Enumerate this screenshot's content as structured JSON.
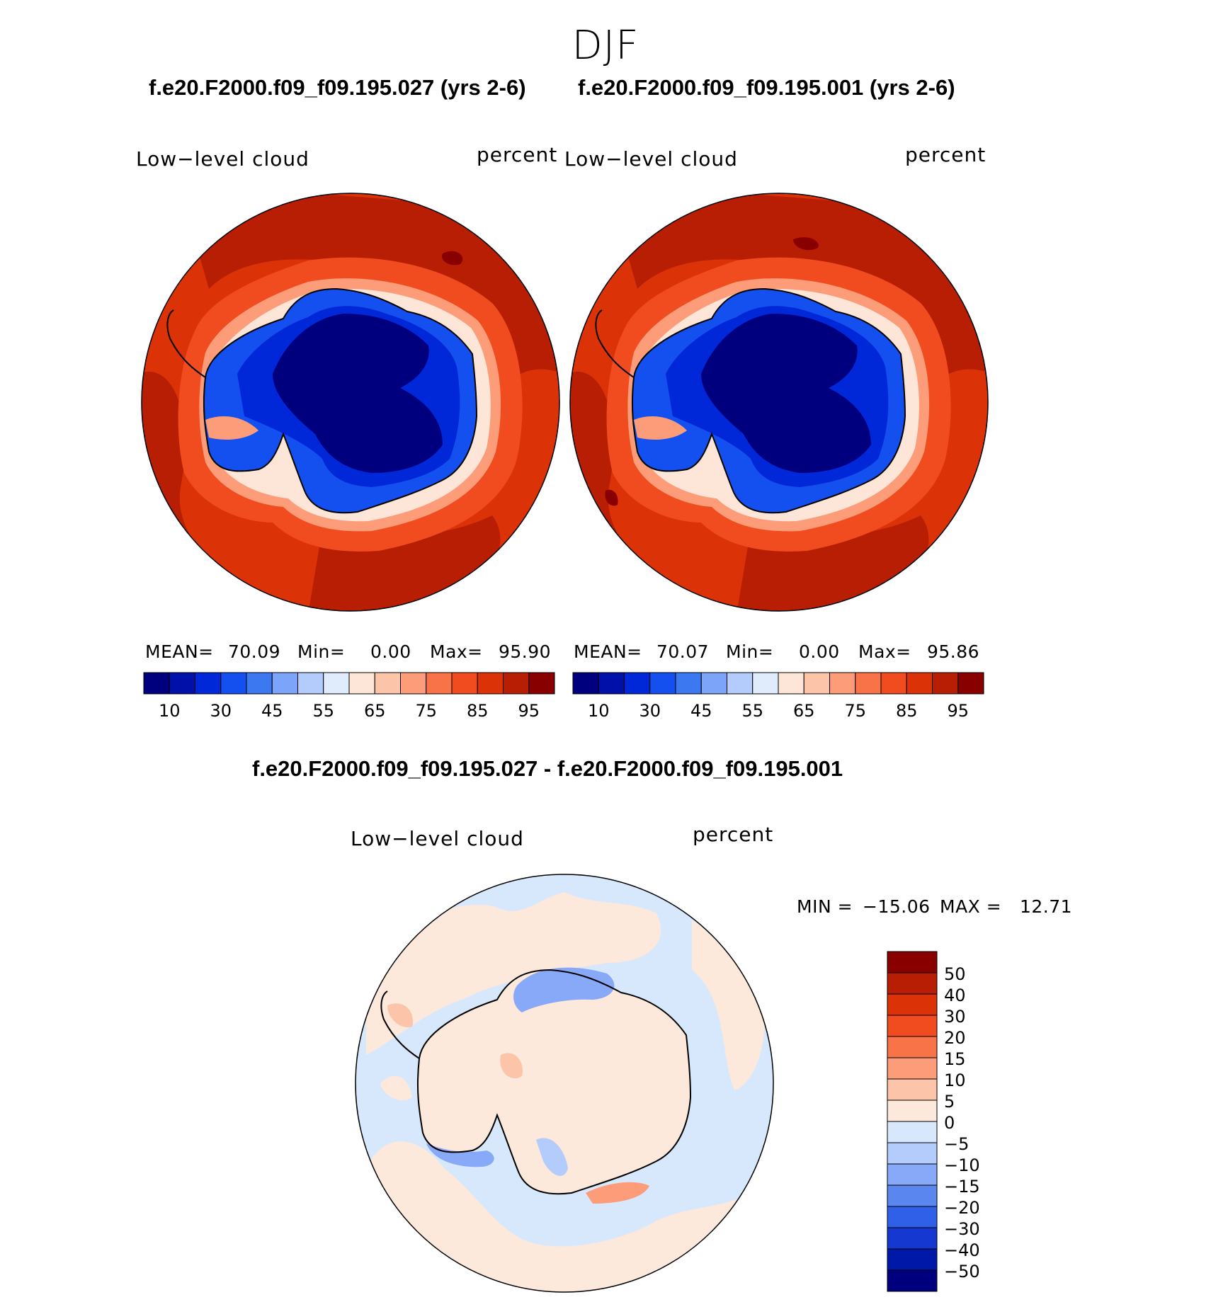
{
  "season": "DJF",
  "panels": [
    {
      "case_title": "f.e20.F2000.f09_f09.195.027 (yrs 2-6)",
      "left_label": "Low−level cloud",
      "right_label": "percent",
      "stats": {
        "mean_label": "MEAN=",
        "mean": "70.09",
        "min_label": "Min=",
        "min": "0.00",
        "max_label": "Max=",
        "max": "95.90"
      }
    },
    {
      "case_title": "f.e20.F2000.f09_f09.195.001 (yrs 2-6)",
      "left_label": "Low−level cloud",
      "right_label": "percent",
      "stats": {
        "mean_label": "MEAN=",
        "mean": "70.07",
        "min_label": "Min=",
        "min": "0.00",
        "max_label": "Max=",
        "max": "95.86"
      }
    }
  ],
  "mean_colorbar": {
    "colors": [
      "#00007f",
      "#0010a8",
      "#0028d8",
      "#1450f0",
      "#3c78f0",
      "#7ca4f8",
      "#b4ccfc",
      "#e0ecfc",
      "#fde6d8",
      "#fcc4a8",
      "#fc9c78",
      "#f87448",
      "#f04c20",
      "#dc3208",
      "#b81e04",
      "#880000"
    ],
    "tick_labels": [
      "10",
      "30",
      "45",
      "55",
      "65",
      "75",
      "85",
      "95"
    ]
  },
  "difference": {
    "title": "f.e20.F2000.f09_f09.195.027 - f.e20.F2000.f09_f09.195.001",
    "left_label": "Low−level cloud",
    "right_label": "percent",
    "min_label": "MIN =",
    "min": "−15.06",
    "max_label": "MAX =",
    "max": "12.71",
    "colorbar": {
      "colors": [
        "#880000",
        "#b81e04",
        "#dc3208",
        "#f04c20",
        "#f87448",
        "#fc9c78",
        "#fcc4a8",
        "#fde8dc",
        "#d8e8fc",
        "#b4ccfc",
        "#88a8f8",
        "#5a86f0",
        "#3060e8",
        "#1438d0",
        "#0018a8",
        "#00007f"
      ],
      "tick_labels": [
        "50",
        "40",
        "30",
        "20",
        "15",
        "10",
        "5",
        "0",
        "−5",
        "−10",
        "−15",
        "−20",
        "−30",
        "−40",
        "−50"
      ]
    }
  }
}
